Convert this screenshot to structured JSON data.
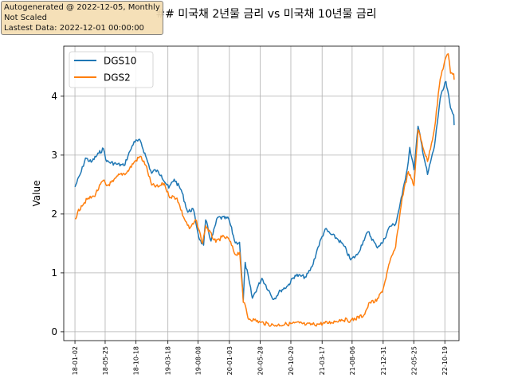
{
  "info_box": {
    "line1": "Autogenerated @ 2022-12-05, Monthly",
    "line2": "Not Scaled",
    "line3": "Lastest Data: 2022-12-01 00:00:00"
  },
  "colors": {
    "DGS10": "#1f77b4",
    "DGS2": "#ff7f0e",
    "grid": "#b0b0b0"
  },
  "chart_data": {
    "type": "line",
    "title": "## 미국채 2년물 금리 vs 미국채 10년물 금리",
    "xlabel": "",
    "ylabel": "Value",
    "xlim": [
      "2017-11-10",
      "2022-12-25"
    ],
    "ylim": [
      -0.15,
      4.85
    ],
    "yticks": [
      0,
      1,
      2,
      3,
      4
    ],
    "xticks": [
      "18-01-02",
      "18-05-25",
      "18-10-18",
      "19-03-18",
      "19-08-08",
      "20-01-03",
      "20-05-28",
      "20-10-20",
      "21-03-17",
      "21-08-06",
      "21-12-31",
      "22-05-25",
      "22-10-19"
    ],
    "xtick_dates": [
      "2018-01-02",
      "2018-05-25",
      "2018-10-18",
      "2019-03-18",
      "2019-08-08",
      "2020-01-03",
      "2020-05-28",
      "2020-10-20",
      "2021-03-17",
      "2021-08-06",
      "2021-12-31",
      "2022-05-25",
      "2022-10-19"
    ],
    "grid": true,
    "legend_position": "top-left",
    "series": [
      {
        "name": "DGS10",
        "points": [
          [
            "2018-01-02",
            2.46
          ],
          [
            "2018-02-01",
            2.72
          ],
          [
            "2018-02-21",
            2.95
          ],
          [
            "2018-03-20",
            2.88
          ],
          [
            "2018-04-25",
            3.03
          ],
          [
            "2018-05-17",
            3.11
          ],
          [
            "2018-06-01",
            2.89
          ],
          [
            "2018-07-16",
            2.85
          ],
          [
            "2018-08-22",
            2.82
          ],
          [
            "2018-09-20",
            3.07
          ],
          [
            "2018-10-09",
            3.23
          ],
          [
            "2018-11-08",
            3.24
          ],
          [
            "2018-12-03",
            2.98
          ],
          [
            "2018-12-31",
            2.69
          ],
          [
            "2019-01-17",
            2.75
          ],
          [
            "2019-02-15",
            2.66
          ],
          [
            "2019-03-22",
            2.44
          ],
          [
            "2019-04-17",
            2.59
          ],
          [
            "2019-05-20",
            2.41
          ],
          [
            "2019-06-20",
            2.03
          ],
          [
            "2019-07-15",
            2.09
          ],
          [
            "2019-08-15",
            1.56
          ],
          [
            "2019-09-03",
            1.47
          ],
          [
            "2019-09-13",
            1.9
          ],
          [
            "2019-10-08",
            1.54
          ],
          [
            "2019-11-08",
            1.94
          ],
          [
            "2019-12-31",
            1.92
          ],
          [
            "2020-01-31",
            1.51
          ],
          [
            "2020-02-20",
            1.52
          ],
          [
            "2020-03-09",
            0.54
          ],
          [
            "2020-03-18",
            1.18
          ],
          [
            "2020-04-21",
            0.57
          ],
          [
            "2020-06-05",
            0.91
          ],
          [
            "2020-07-31",
            0.55
          ],
          [
            "2020-09-01",
            0.7
          ],
          [
            "2020-10-05",
            0.78
          ],
          [
            "2020-11-09",
            0.96
          ],
          [
            "2020-12-31",
            0.93
          ],
          [
            "2021-01-29",
            1.11
          ],
          [
            "2021-02-26",
            1.44
          ],
          [
            "2021-03-31",
            1.74
          ],
          [
            "2021-04-30",
            1.65
          ],
          [
            "2021-05-28",
            1.58
          ],
          [
            "2021-06-30",
            1.45
          ],
          [
            "2021-07-30",
            1.22
          ],
          [
            "2021-08-31",
            1.31
          ],
          [
            "2021-09-28",
            1.54
          ],
          [
            "2021-10-21",
            1.7
          ],
          [
            "2021-11-30",
            1.44
          ],
          [
            "2021-12-30",
            1.52
          ],
          [
            "2022-01-31",
            1.79
          ],
          [
            "2022-02-28",
            1.83
          ],
          [
            "2022-03-31",
            2.32
          ],
          [
            "2022-04-29",
            2.89
          ],
          [
            "2022-05-06",
            3.13
          ],
          [
            "2022-05-26",
            2.75
          ],
          [
            "2022-06-14",
            3.49
          ],
          [
            "2022-07-29",
            2.67
          ],
          [
            "2022-08-31",
            3.15
          ],
          [
            "2022-09-27",
            3.96
          ],
          [
            "2022-10-24",
            4.25
          ],
          [
            "2022-11-15",
            3.8
          ],
          [
            "2022-11-30",
            3.68
          ],
          [
            "2022-12-02",
            3.51
          ]
        ]
      },
      {
        "name": "DGS2",
        "points": [
          [
            "2018-01-02",
            1.92
          ],
          [
            "2018-02-01",
            2.14
          ],
          [
            "2018-03-01",
            2.25
          ],
          [
            "2018-04-02",
            2.3
          ],
          [
            "2018-05-16",
            2.57
          ],
          [
            "2018-06-01",
            2.48
          ],
          [
            "2018-07-02",
            2.55
          ],
          [
            "2018-08-01",
            2.67
          ],
          [
            "2018-09-04",
            2.7
          ],
          [
            "2018-10-09",
            2.88
          ],
          [
            "2018-11-08",
            2.98
          ],
          [
            "2018-12-03",
            2.83
          ],
          [
            "2018-12-31",
            2.49
          ],
          [
            "2019-01-31",
            2.46
          ],
          [
            "2019-02-28",
            2.52
          ],
          [
            "2019-03-22",
            2.31
          ],
          [
            "2019-04-30",
            2.27
          ],
          [
            "2019-05-31",
            1.95
          ],
          [
            "2019-06-28",
            1.75
          ],
          [
            "2019-07-31",
            1.89
          ],
          [
            "2019-08-29",
            1.5
          ],
          [
            "2019-09-13",
            1.8
          ],
          [
            "2019-10-31",
            1.52
          ],
          [
            "2019-11-29",
            1.61
          ],
          [
            "2019-12-31",
            1.58
          ],
          [
            "2020-01-31",
            1.31
          ],
          [
            "2020-02-21",
            1.35
          ],
          [
            "2020-03-09",
            0.5
          ],
          [
            "2020-03-19",
            0.44
          ],
          [
            "2020-03-31",
            0.23
          ],
          [
            "2020-04-30",
            0.2
          ],
          [
            "2020-05-29",
            0.16
          ],
          [
            "2020-07-31",
            0.11
          ],
          [
            "2020-09-30",
            0.13
          ],
          [
            "2020-11-30",
            0.15
          ],
          [
            "2020-12-31",
            0.12
          ],
          [
            "2021-02-26",
            0.13
          ],
          [
            "2021-04-30",
            0.16
          ],
          [
            "2021-06-17",
            0.21
          ],
          [
            "2021-07-30",
            0.19
          ],
          [
            "2021-09-30",
            0.28
          ],
          [
            "2021-10-29",
            0.5
          ],
          [
            "2021-11-30",
            0.52
          ],
          [
            "2021-12-31",
            0.73
          ],
          [
            "2022-01-31",
            1.18
          ],
          [
            "2022-02-28",
            1.44
          ],
          [
            "2022-03-31",
            2.28
          ],
          [
            "2022-04-29",
            2.72
          ],
          [
            "2022-05-26",
            2.48
          ],
          [
            "2022-06-14",
            3.43
          ],
          [
            "2022-07-29",
            2.89
          ],
          [
            "2022-08-31",
            3.45
          ],
          [
            "2022-09-27",
            4.29
          ],
          [
            "2022-10-20",
            4.62
          ],
          [
            "2022-11-04",
            4.72
          ],
          [
            "2022-11-15",
            4.39
          ],
          [
            "2022-11-30",
            4.38
          ],
          [
            "2022-12-02",
            4.28
          ]
        ]
      }
    ]
  }
}
